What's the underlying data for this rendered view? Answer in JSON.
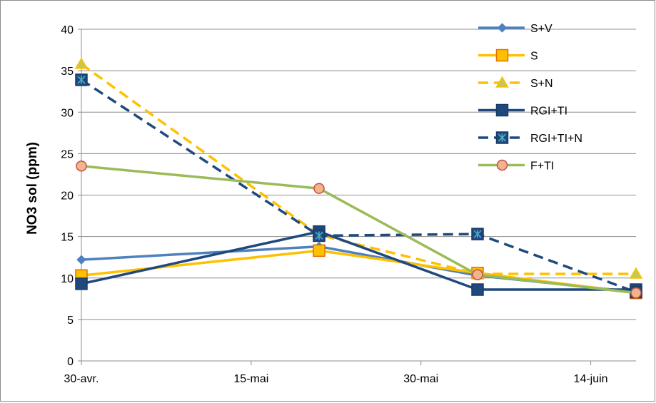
{
  "chart_data": {
    "type": "line",
    "title": "",
    "xlabel": "",
    "ylabel": "NO3 sol (ppm)",
    "ylim": [
      0,
      40
    ],
    "yticks": [
      "0",
      "5",
      "10",
      "15",
      "20",
      "25",
      "30",
      "35",
      "40"
    ],
    "xlim": [
      "30-avr.",
      "18-juin"
    ],
    "xticks": [
      {
        "date": "2013-04-30",
        "label": "30-avr."
      },
      {
        "date": "2013-05-15",
        "label": "15-mai"
      },
      {
        "date": "2013-05-30",
        "label": "30-mai"
      },
      {
        "date": "2013-06-14",
        "label": "14-juin"
      }
    ],
    "grid": "horizontal",
    "legend_position": "top-right",
    "series": [
      {
        "name": "S+V",
        "color": "#4f81bd",
        "dash": "solid",
        "marker": "diamond",
        "points": [
          [
            "2013-04-30",
            12.2
          ],
          [
            "2013-05-21",
            13.8
          ],
          [
            "2013-06-04",
            10.3
          ],
          [
            "2013-06-18",
            8.3
          ]
        ]
      },
      {
        "name": "S",
        "color": "#ffc000",
        "dash": "solid",
        "marker": "square",
        "points": [
          [
            "2013-04-30",
            10.3
          ],
          [
            "2013-05-21",
            13.3
          ],
          [
            "2013-06-04",
            10.6
          ],
          [
            "2013-06-18",
            8.2
          ]
        ]
      },
      {
        "name": "S+N",
        "color": "#ffc000",
        "dash": "dashed",
        "marker": "triangle",
        "points": [
          [
            "2013-04-30",
            35.8
          ],
          [
            "2013-05-21",
            15.2
          ],
          [
            "2013-06-04",
            10.5
          ],
          [
            "2013-06-18",
            10.5
          ]
        ]
      },
      {
        "name": "RGI+TI",
        "color": "#1f497d",
        "dash": "solid",
        "marker": "square",
        "points": [
          [
            "2013-04-30",
            9.3
          ],
          [
            "2013-05-21",
            15.6
          ],
          [
            "2013-06-04",
            8.6
          ],
          [
            "2013-06-18",
            8.6
          ]
        ]
      },
      {
        "name": "RGI+TI+N",
        "color": "#1f497d",
        "dash": "dashed",
        "marker": "square-star",
        "points": [
          [
            "2013-04-30",
            33.9
          ],
          [
            "2013-05-21",
            15.1
          ],
          [
            "2013-06-04",
            15.3
          ],
          [
            "2013-06-18",
            8.3
          ]
        ]
      },
      {
        "name": "F+TI",
        "color": "#9bbb59",
        "dash": "solid",
        "marker": "circle",
        "points": [
          [
            "2013-04-30",
            23.5
          ],
          [
            "2013-05-21",
            20.8
          ],
          [
            "2013-06-04",
            10.4
          ],
          [
            "2013-06-18",
            8.2
          ]
        ]
      }
    ]
  }
}
